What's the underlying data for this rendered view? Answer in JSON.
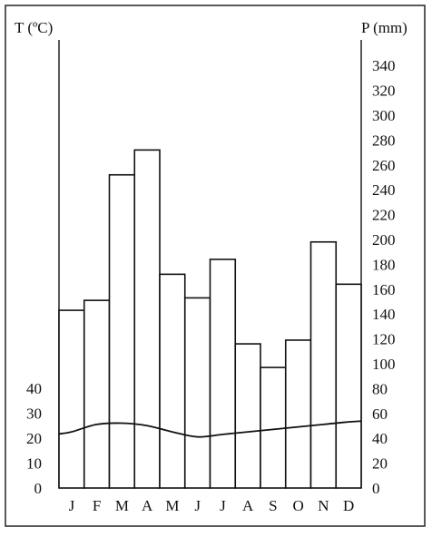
{
  "chart_data": {
    "type": "bar",
    "categories": [
      "J",
      "F",
      "M",
      "A",
      "M",
      "J",
      "J",
      "A",
      "S",
      "O",
      "N",
      "D"
    ],
    "series": [
      {
        "type": "bar",
        "axis": "right",
        "values": [
          143,
          151,
          252,
          272,
          172,
          153,
          184,
          116,
          97,
          119,
          198,
          164
        ]
      },
      {
        "type": "line",
        "axis": "left",
        "values": [
          22.5,
          25.5,
          26,
          25,
          22.5,
          20.5,
          21.5,
          22.5,
          23.5,
          24.5,
          25.5,
          26.5
        ]
      }
    ],
    "left_axis": {
      "label": "T (ºC)",
      "ticks": [
        0,
        10,
        20,
        30,
        40
      ]
    },
    "right_axis": {
      "label": "P (mm)",
      "ticks": [
        0,
        20,
        40,
        60,
        80,
        100,
        120,
        140,
        160,
        180,
        200,
        220,
        240,
        260,
        280,
        300,
        320,
        340
      ],
      "ylim": [
        0,
        350
      ]
    },
    "grid": false,
    "legend": "none"
  }
}
